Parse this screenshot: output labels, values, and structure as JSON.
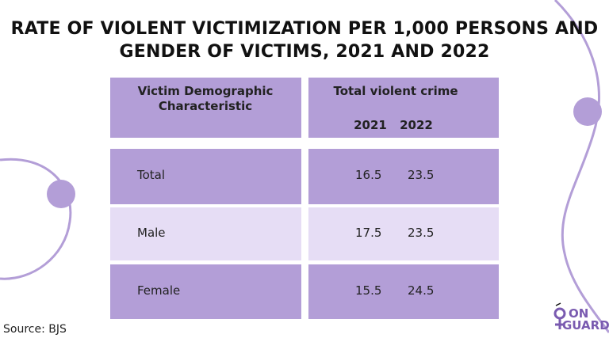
{
  "title": {
    "line1": "RATE OF VIOLENT VICTIMIZATION PER 1,000 PERSONS AND",
    "line2": "GENDER OF VICTIMS, 2021 AND 2022"
  },
  "table": {
    "col1_header": "Victim Demographic Characteristic",
    "col2_header": "Total violent crime",
    "year1": "2021",
    "year2": "2022",
    "rows": [
      {
        "label": "Total",
        "v2021": "16.5",
        "v2022": "23.5"
      },
      {
        "label": "Male",
        "v2021": "17.5",
        "v2022": "23.5"
      },
      {
        "label": "Female",
        "v2021": "15.5",
        "v2022": "24.5"
      }
    ]
  },
  "source": "Source: BJS",
  "logo": {
    "line1": "ON",
    "line2": "GUARD"
  },
  "colors": {
    "header": "#b39ed7",
    "row_dark": "#b39ed7",
    "row_light": "#e6ddf5",
    "accent": "#b39ed7",
    "logo": "#7a5bb0"
  }
}
